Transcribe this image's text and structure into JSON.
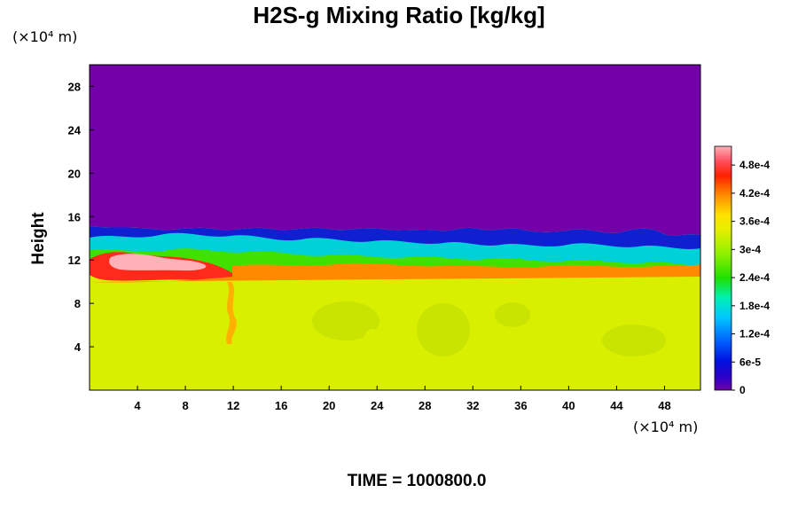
{
  "chart_data": {
    "type": "heatmap",
    "title": "H2S-g Mixing Ratio [kg/kg]",
    "xlabel": "",
    "ylabel": "Height",
    "x_unit": "(×10⁴ m)",
    "y_unit": "(×10⁴ m)",
    "x_ticks": [
      4,
      8,
      12,
      16,
      20,
      24,
      28,
      32,
      36,
      40,
      44,
      48
    ],
    "y_ticks": [
      4,
      8,
      12,
      16,
      20,
      24,
      28
    ],
    "xlim": [
      0,
      51
    ],
    "ylim": [
      0,
      30
    ],
    "colorbar": {
      "labels": [
        "0",
        "6e-5",
        "1.2e-4",
        "1.8e-4",
        "2.4e-4",
        "3e-4",
        "3.6e-4",
        "4.2e-4",
        "4.8e-4"
      ],
      "values": [
        0,
        6e-05,
        0.00012,
        0.00018,
        0.00024,
        0.0003,
        0.00036,
        0.00042,
        0.00048
      ],
      "range": [
        0,
        0.00052
      ]
    },
    "fields": {
      "upper_layer_value": 0,
      "lower_layer_value": 0.00034,
      "interface_height_approx": 11.5,
      "interface_top_approx": 15.5
    },
    "grid": false,
    "legend": "colorbar-right"
  },
  "footer": {
    "time_label": "TIME = 1000800.0"
  },
  "colors": {
    "upper": "#7300a8",
    "lower": "#d8f000",
    "high": "#ff2a1a",
    "peak": "#ffb0b8"
  }
}
